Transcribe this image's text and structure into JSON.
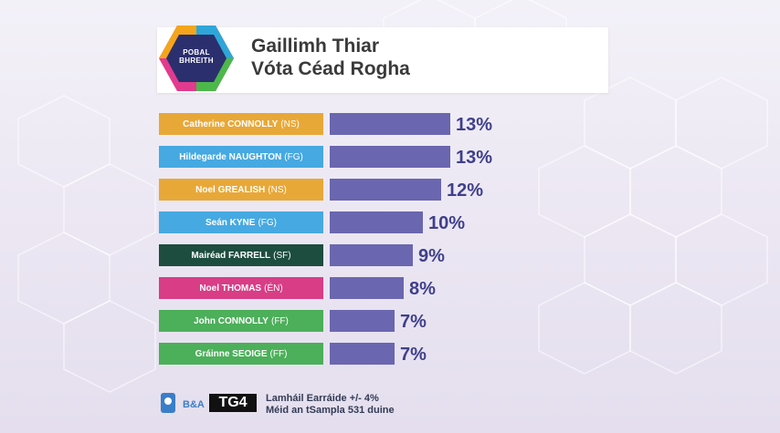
{
  "header": {
    "logo_line1": "POBAL",
    "logo_line2": "BHREITH",
    "title_line1": "Gaillimh Thiar",
    "title_line2": "Vóta Céad Rogha"
  },
  "chart_data": {
    "type": "bar",
    "orientation": "horizontal",
    "title": "Gaillimh Thiar Vóta Céad Rogha",
    "categories": [
      "Catherine CONNOLLY (NS)",
      "Hildegarde NAUGHTON (FG)",
      "Noel GREALISH (NS)",
      "Seán KYNE (FG)",
      "Mairéad FARRELL (SF)",
      "Noel THOMAS (ÉN)",
      "John CONNOLLY (FF)",
      "Gráinne SEOIGE (FF)"
    ],
    "values": [
      13,
      13,
      12,
      10,
      9,
      8,
      7,
      7
    ],
    "value_labels": [
      "13%",
      "13%",
      "12%",
      "10%",
      "9%",
      "8%",
      "7%",
      "7%"
    ],
    "xlim": [
      0,
      13
    ],
    "bar_color": "#6a66b0",
    "grid": false,
    "legend": "none",
    "rows": [
      {
        "name": "Catherine CONNOLLY",
        "party": "(NS)",
        "color": "#e8a838"
      },
      {
        "name": "Hildegarde NAUGHTON",
        "party": "(FG)",
        "color": "#46a9e2"
      },
      {
        "name": "Noel GREALISH",
        "party": "(NS)",
        "color": "#e8a838"
      },
      {
        "name": "Seán KYNE",
        "party": "(FG)",
        "color": "#46a9e2"
      },
      {
        "name": "Mairéad FARRELL",
        "party": "(SF)",
        "color": "#1d4d3f"
      },
      {
        "name": "Noel THOMAS",
        "party": "(ÉN)",
        "color": "#d83d86"
      },
      {
        "name": "John CONNOLLY",
        "party": "(FF)",
        "color": "#4caf5a"
      },
      {
        "name": "Gráinne SEOIGE",
        "party": "(FF)",
        "color": "#4caf5a"
      }
    ]
  },
  "footer": {
    "logo_a": "B&A",
    "logo_b": "TG4",
    "margin_text": "Lamháil Earráide +/- 4%",
    "sample_text": "Méid an tSampla 531 duine"
  }
}
